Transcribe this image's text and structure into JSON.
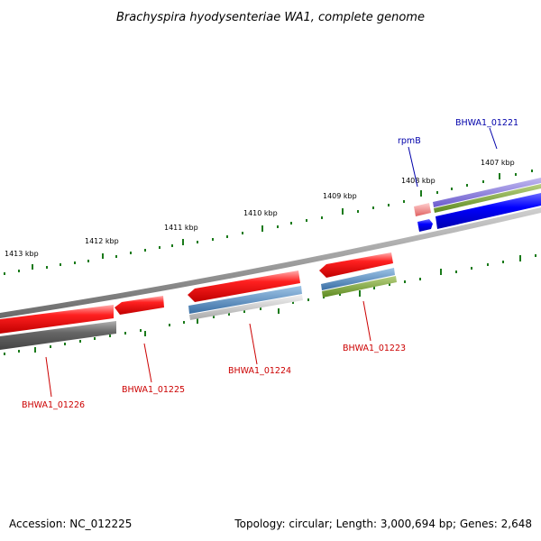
{
  "title": "Brachyspira hyodysenteriae WA1, complete genome",
  "ticks": [
    "1413 kbp",
    "1412 kbp",
    "1411 kbp",
    "1410 kbp",
    "1409 kbp",
    "1408 kbp",
    "1407 kbp"
  ],
  "genes": {
    "g01226": "BHWA1_01226",
    "g01225": "BHWA1_01225",
    "g01224": "BHWA1_01224",
    "g01223": "BHWA1_01223",
    "rpmB": "rpmB",
    "g01221": "BHWA1_01221"
  },
  "footer": {
    "accession": "Accession: NC_012225",
    "topology": "Topology: circular; Length: 3,000,694 bp; Genes: 2,648"
  },
  "colors": {
    "cds": "#ff1a1a",
    "gene_red": "#cc0000",
    "gene_blue": "#0000aa",
    "tick": "#1a7a1a",
    "backbone": "#888888"
  }
}
